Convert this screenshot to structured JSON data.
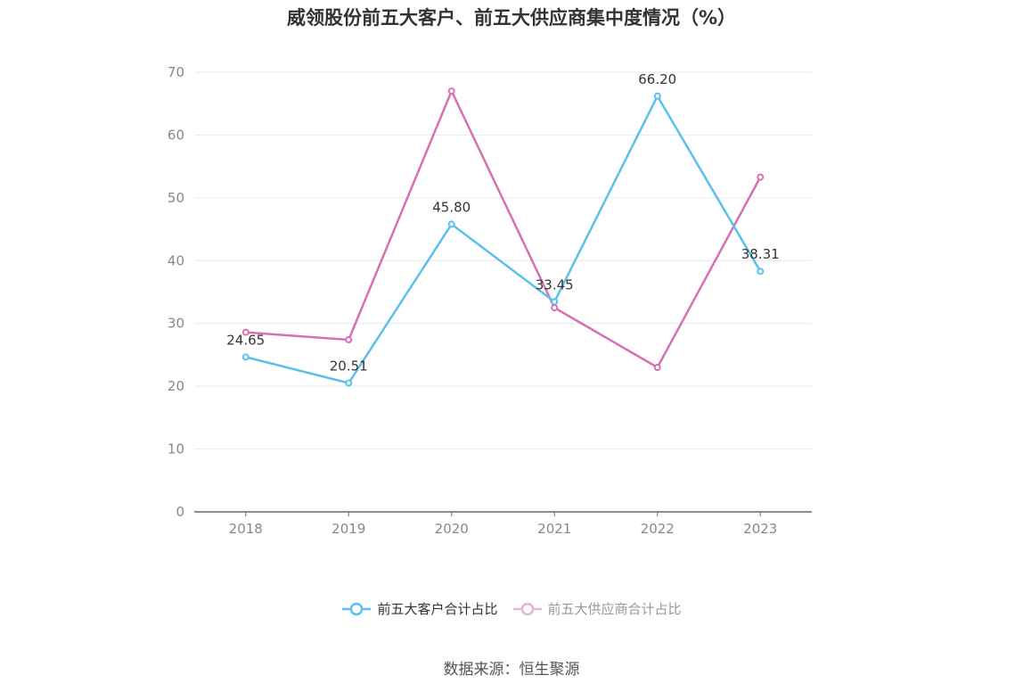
{
  "chart_data": {
    "type": "line",
    "title": "威领股份前五大客户、前五大供应商集中度情况（%）",
    "categories": [
      "2018",
      "2019",
      "2020",
      "2021",
      "2022",
      "2023"
    ],
    "ylim": [
      0,
      70
    ],
    "yticks": [
      "0",
      "10",
      "20",
      "30",
      "40",
      "50",
      "60",
      "70"
    ],
    "grid": true,
    "legend_position": "bottom",
    "series": [
      {
        "name": "前五大客户合计占比",
        "color": "#5bc0eb",
        "values": [
          24.65,
          20.51,
          45.8,
          33.45,
          66.2,
          38.31
        ],
        "labels": [
          "24.65",
          "20.51",
          "45.80",
          "33.45",
          "66.20",
          "38.31"
        ]
      },
      {
        "name": "前五大供应商合计占比",
        "color": "#d770b2",
        "values": [
          28.6,
          27.4,
          67.0,
          32.5,
          23.0,
          53.3
        ]
      }
    ]
  },
  "source": "数据来源：恒生聚源"
}
